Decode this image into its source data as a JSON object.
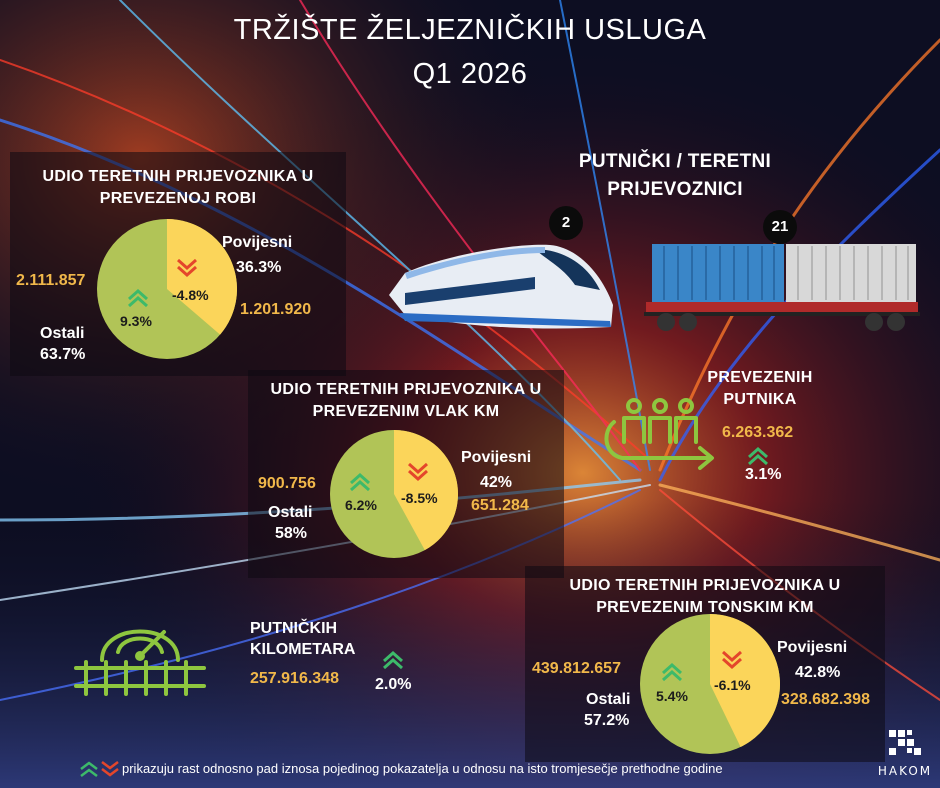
{
  "title_line1": "TRŽIŠTE ŽELJEZNIČKIH USLUGA",
  "title_line2": "Q1 2026",
  "colors": {
    "ostali": "#b1c457",
    "povijesni": "#fbd55a",
    "up": "#3dba6a",
    "down": "#e4462b",
    "value": "#f1b84a",
    "icon": "#8ec63f"
  },
  "goods": {
    "title_line1": "UDIO TERETNIH PRIJEVOZNIKA U",
    "title_line2": "PREVEZENOJ ROBI",
    "povijesni_label": "Povijesni",
    "povijesni_pct": "36.3%",
    "povijesni_value": "1.201.920",
    "povijesni_change": "-4.8%",
    "ostali_label": "Ostali",
    "ostali_pct": "63.7%",
    "ostali_value": "2.111.857",
    "ostali_change": "9.3%",
    "povijesni_share": 0.363
  },
  "carriers": {
    "title_line1": "PUTNIČKI / TERETNI",
    "title_line2": "PRIJEVOZNICI",
    "passenger_count": "2",
    "freight_count": "21"
  },
  "vlak_km": {
    "title_line1": "UDIO TERETNIH PRIJEVOZNIKA U",
    "title_line2": "PREVEZENIM VLAK KM",
    "povijesni_label": "Povijesni",
    "povijesni_pct": "42%",
    "povijesni_value": "651.284",
    "povijesni_change": "-8.5%",
    "ostali_label": "Ostali",
    "ostali_pct": "58%",
    "ostali_value": "900.756",
    "ostali_change": "6.2%",
    "povijesni_share": 0.42
  },
  "passengers": {
    "label_line1": "PREVEZENIH",
    "label_line2": "PUTNIKA",
    "value": "6.263.362",
    "change": "3.1%"
  },
  "km": {
    "label_line1": "PUTNIČKIH",
    "label_line2": "KILOMETARA",
    "value": "257.916.348",
    "change": "2.0%"
  },
  "tonskim_km": {
    "title_line1": "UDIO TERETNIH PRIJEVOZNIKA U",
    "title_line2": "PREVEZENIM TONSKIM KM",
    "povijesni_label": "Povijesni",
    "povijesni_pct": "42.8%",
    "povijesni_value": "328.682.398",
    "povijesni_change": "-6.1%",
    "ostali_label": "Ostali",
    "ostali_pct": "57.2%",
    "ostali_value": "439.812.657",
    "ostali_change": "5.4%",
    "povijesni_share": 0.428
  },
  "footnote": "prikazuju rast odnosno pad iznosa pojedinog pokazatelja u odnosu na isto tromjesečje prethodne godine",
  "logo_text": "HAKOM"
}
